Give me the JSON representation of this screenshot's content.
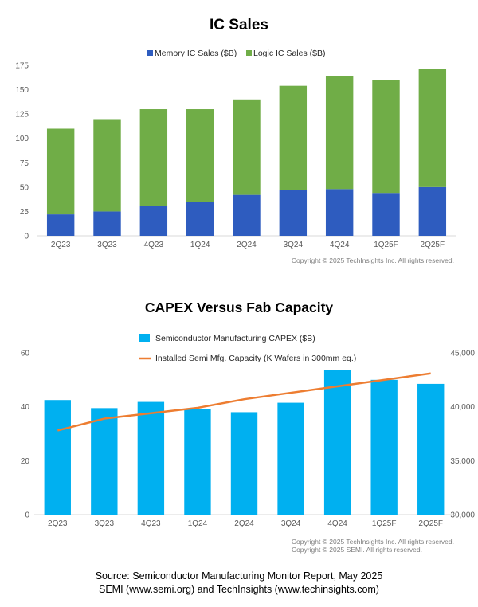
{
  "chart_data": [
    {
      "type": "bar",
      "stacked": true,
      "title": "IC Sales",
      "categories": [
        "2Q23",
        "3Q23",
        "4Q23",
        "1Q24",
        "2Q24",
        "3Q24",
        "4Q24",
        "1Q25F",
        "2Q25F"
      ],
      "series": [
        {
          "name": "Memory IC Sales ($B)",
          "values": [
            22,
            25,
            31,
            35,
            42,
            47,
            48,
            44,
            50
          ],
          "color": "#2e5cbf"
        },
        {
          "name": "Logic IC Sales ($B)",
          "values": [
            88,
            94,
            99,
            95,
            98,
            107,
            116,
            116,
            121
          ],
          "color": "#70ad47"
        }
      ],
      "ylim": [
        0,
        175
      ],
      "yticks": [
        0,
        25,
        50,
        75,
        100,
        125,
        150,
        175
      ],
      "legend": "top",
      "copyright": "Copyright © 2025 TechInsights Inc.  All rights reserved."
    },
    {
      "type": "bar-line",
      "title": "CAPEX Versus Fab Capacity",
      "categories": [
        "2Q23",
        "3Q23",
        "4Q23",
        "1Q24",
        "2Q24",
        "3Q24",
        "4Q24",
        "1Q25F",
        "2Q25F"
      ],
      "bar_series": {
        "name": "Semiconductor Manufacturing CAPEX ($B)",
        "values": [
          42.5,
          39.5,
          41.8,
          39.2,
          38.0,
          41.5,
          53.5,
          50.0,
          48.5
        ],
        "color": "#00b0f0"
      },
      "line_series": {
        "name": "Installed Semi Mfg. Capacity (K Wafers in 300mm eq.)",
        "values": [
          37800,
          38900,
          39400,
          39900,
          40700,
          41300,
          41900,
          42500,
          43100
        ],
        "color": "#ed7d31"
      },
      "ylim": [
        0,
        60
      ],
      "yticks": [
        0,
        20,
        40,
        60
      ],
      "y2lim": [
        30000,
        45000
      ],
      "y2ticks": [
        "30,000",
        "35,000",
        "40,000",
        "45,000"
      ],
      "legend": "top",
      "copyright_lines": [
        "Copyright © 2025 TechInsights Inc.  All rights reserved.",
        "Copyright © 2025 SEMI.  All rights reserved."
      ]
    }
  ],
  "source": {
    "line1": "Source: Semiconductor Manufacturing Monitor Report, May 2025",
    "line2": "SEMI (www.semi.org) and TechInsights (www.techinsights.com)"
  }
}
